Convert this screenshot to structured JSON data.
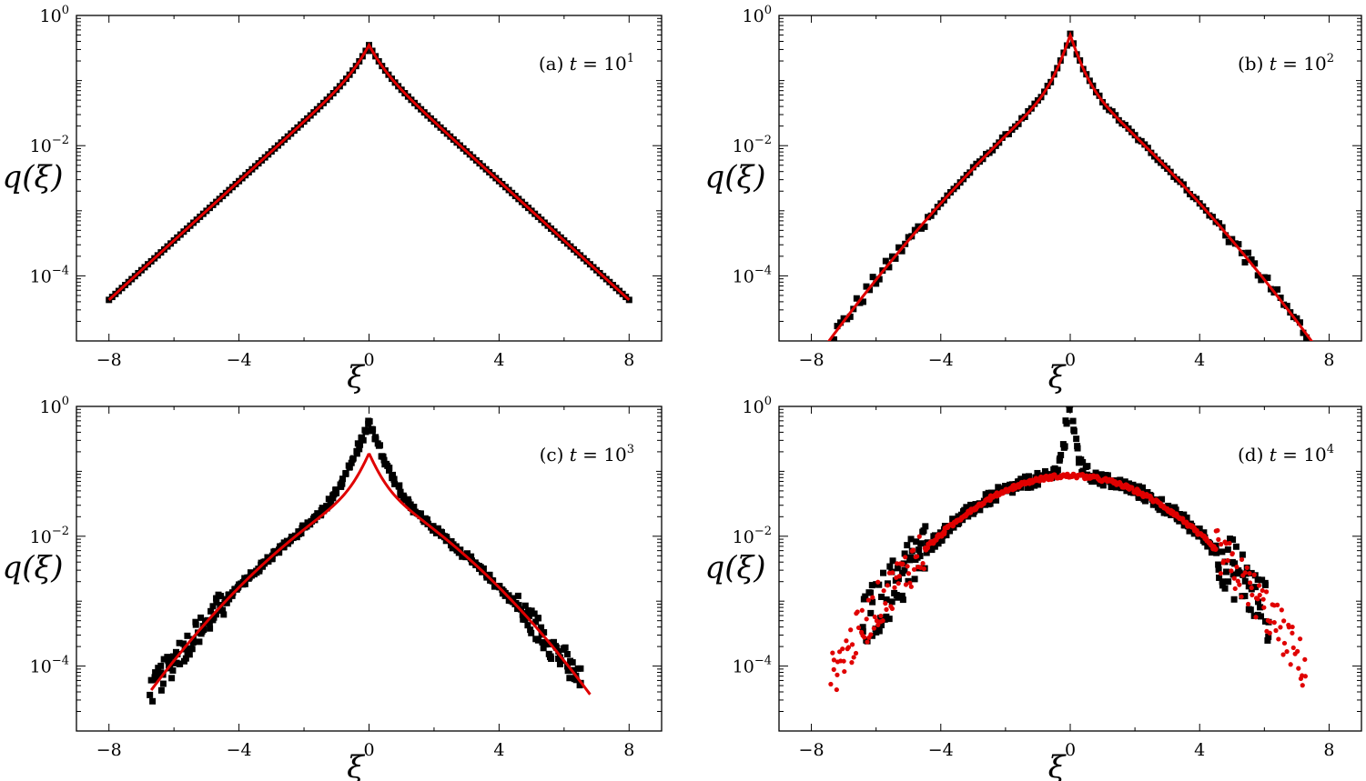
{
  "colors": {
    "simulation": "#000000",
    "theory": "#e00000",
    "frame": "#000000"
  },
  "chart_data": [
    {
      "type": "scatter",
      "panel_label": "(a) t = 10^1",
      "panel_letter": "(a)",
      "panel_var": "t",
      "panel_eq": "=",
      "panel_base": "10",
      "panel_exp": "1",
      "xlabel": "ξ",
      "ylabel": "q(ξ)",
      "xlim": [
        -9,
        9
      ],
      "ylim_log10": [
        -5,
        0
      ],
      "yscale": "log",
      "xticks": [
        "−8",
        "−4",
        "0",
        "4",
        "8"
      ],
      "xtick_values": [
        -8,
        -4,
        0,
        4,
        8
      ],
      "yticks": [
        {
          "base": "10",
          "exp": "0",
          "value": 0
        },
        {
          "base": "10",
          "exp": "−2",
          "value": -2
        },
        {
          "base": "10",
          "exp": "−4",
          "value": -4
        }
      ],
      "model": {
        "peak": 0.35,
        "core_width": 0.3,
        "decay_left": 1.05,
        "decay_right": 1.05,
        "curvature": 0,
        "shoulder": 0.19
      },
      "series": [
        {
          "role": "simulation",
          "style": "squares",
          "x_range": [
            -8,
            8
          ],
          "spread": 0
        },
        {
          "role": "theory",
          "style": "line",
          "x_range": [
            -8,
            8
          ]
        }
      ]
    },
    {
      "type": "scatter",
      "panel_label": "(b) t = 10^2",
      "panel_letter": "(b)",
      "panel_var": "t",
      "panel_eq": "=",
      "panel_base": "10",
      "panel_exp": "2",
      "xlabel": "ξ",
      "ylabel": "q(ξ)",
      "xlim": [
        -9,
        9
      ],
      "ylim_log10": [
        -5,
        0
      ],
      "yscale": "log",
      "xticks": [
        "−8",
        "−4",
        "0",
        "4",
        "8"
      ],
      "xtick_values": [
        -8,
        -4,
        0,
        4,
        8
      ],
      "yticks": [
        {
          "base": "10",
          "exp": "0",
          "value": 0
        },
        {
          "base": "10",
          "exp": "−2",
          "value": -2
        },
        {
          "base": "10",
          "exp": "−4",
          "value": -4
        }
      ],
      "model": {
        "peak": 0.5,
        "core_width": 0.25,
        "decay_left": 0.95,
        "decay_right": 0.95,
        "curvature": 0.04,
        "shoulder": 0.11
      },
      "series": [
        {
          "role": "simulation",
          "style": "squares",
          "x_range": [
            -7.5,
            7.5
          ],
          "spread": 0.06
        },
        {
          "role": "theory",
          "style": "line",
          "x_range": [
            -7.5,
            7.5
          ]
        }
      ]
    },
    {
      "type": "scatter",
      "panel_label": "(c) t = 10^3",
      "panel_letter": "(c)",
      "panel_var": "t",
      "panel_eq": "=",
      "panel_base": "10",
      "panel_exp": "3",
      "xlabel": "ξ",
      "ylabel": "q(ξ)",
      "xlim": [
        -9,
        9
      ],
      "ylim_log10": [
        -5,
        0
      ],
      "yscale": "log",
      "xticks": [
        "−8",
        "−4",
        "0",
        "4",
        "8"
      ],
      "xtick_values": [
        -8,
        -4,
        0,
        4,
        8
      ],
      "yticks": [
        {
          "base": "10",
          "exp": "0",
          "value": 0
        },
        {
          "base": "10",
          "exp": "−2",
          "value": -2
        },
        {
          "base": "10",
          "exp": "−4",
          "value": -4
        }
      ],
      "model": {
        "peak_sim": 0.6,
        "peak": 0.19,
        "core_width": 0.3,
        "decay_left": 0.6,
        "decay_right": 0.6,
        "curvature": 0.07,
        "shoulder": 0.055
      },
      "series": [
        {
          "role": "simulation",
          "style": "squares",
          "x_range": [
            -6.7,
            6.5
          ],
          "spread": 0.12
        },
        {
          "role": "theory",
          "style": "line",
          "x_range": [
            -6.7,
            6.8
          ]
        }
      ]
    },
    {
      "type": "scatter",
      "panel_label": "(d) t = 10^4",
      "panel_letter": "(d)",
      "panel_var": "t",
      "panel_eq": "=",
      "panel_base": "10",
      "panel_exp": "4",
      "xlabel": "ξ",
      "ylabel": "q(ξ)",
      "xlim": [
        -9,
        9
      ],
      "ylim_log10": [
        -5,
        0
      ],
      "yscale": "log",
      "xticks": [
        "−8",
        "−4",
        "0",
        "4",
        "8"
      ],
      "xtick_values": [
        -8,
        -4,
        0,
        4,
        8
      ],
      "yticks": [
        {
          "base": "10",
          "exp": "0",
          "value": 0
        },
        {
          "base": "10",
          "exp": "−2",
          "value": -2
        },
        {
          "base": "10",
          "exp": "−4",
          "value": -4
        }
      ],
      "model": {
        "peak_sim": 1.0,
        "peak": 0.085,
        "core_width": 0.12,
        "decay_left": 0.0,
        "decay_right": 0.0,
        "curvature": 0.13,
        "shoulder": 0.085
      },
      "series": [
        {
          "role": "simulation",
          "style": "squares",
          "x_range": [
            -6.4,
            6.1
          ],
          "spread": 0.25
        },
        {
          "role": "theory",
          "style": "dots",
          "x_range": [
            -7.4,
            7.3
          ]
        }
      ]
    }
  ]
}
